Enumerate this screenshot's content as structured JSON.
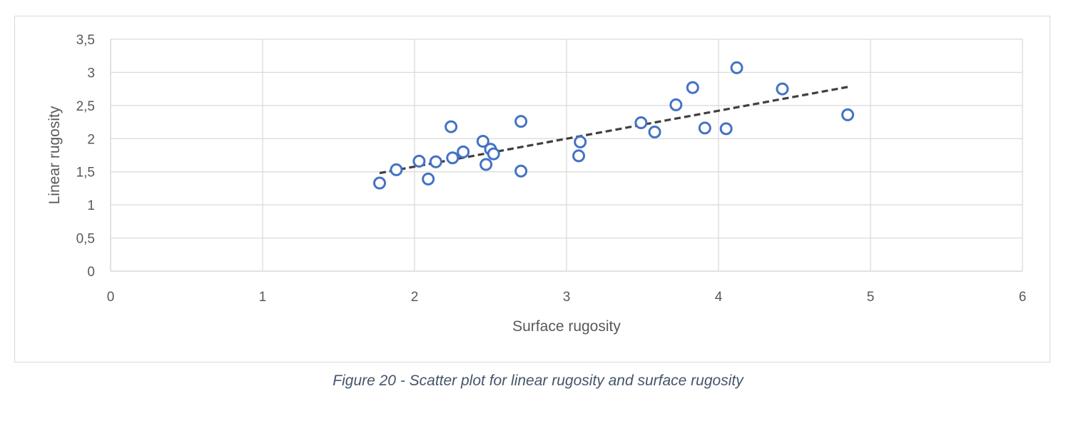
{
  "chart_data": {
    "type": "scatter",
    "title": "",
    "xlabel": "Surface rugosity",
    "ylabel": "Linear rugosity",
    "xlim": [
      0,
      6
    ],
    "ylim": [
      0,
      3.5
    ],
    "x_ticks": [
      0,
      1,
      2,
      3,
      4,
      5,
      6
    ],
    "x_tick_labels": [
      "0",
      "1",
      "2",
      "3",
      "4",
      "5",
      "6"
    ],
    "y_ticks": [
      0,
      0.5,
      1,
      1.5,
      2,
      2.5,
      3,
      3.5
    ],
    "y_tick_labels": [
      "0",
      "0,5",
      "1",
      "1,5",
      "2",
      "2,5",
      "3",
      "3,5"
    ],
    "grid": true,
    "legend": "none",
    "series": [
      {
        "name": "Linear rugosity",
        "marker_fill": "#ffffff",
        "marker_stroke": "#4472c4",
        "points": [
          [
            1.77,
            1.33
          ],
          [
            1.88,
            1.53
          ],
          [
            2.03,
            1.66
          ],
          [
            2.09,
            1.39
          ],
          [
            2.14,
            1.65
          ],
          [
            2.24,
            2.18
          ],
          [
            2.25,
            1.71
          ],
          [
            2.32,
            1.8
          ],
          [
            2.45,
            1.96
          ],
          [
            2.47,
            1.61
          ],
          [
            2.5,
            1.84
          ],
          [
            2.52,
            1.77
          ],
          [
            2.7,
            2.26
          ],
          [
            2.7,
            1.51
          ],
          [
            3.08,
            1.74
          ],
          [
            3.09,
            1.95
          ],
          [
            3.49,
            2.24
          ],
          [
            3.58,
            2.1
          ],
          [
            3.72,
            2.51
          ],
          [
            3.83,
            2.77
          ],
          [
            3.91,
            2.16
          ],
          [
            4.05,
            2.15
          ],
          [
            4.12,
            3.07
          ],
          [
            4.42,
            2.75
          ],
          [
            4.85,
            2.36
          ]
        ]
      }
    ],
    "trendline": {
      "type": "linear",
      "color": "#404040",
      "style": "dashed",
      "x": [
        1.77,
        4.85
      ],
      "y": [
        1.48,
        2.78
      ]
    }
  },
  "caption": "Figure 20 - Scatter plot for linear rugosity and surface rugosity"
}
